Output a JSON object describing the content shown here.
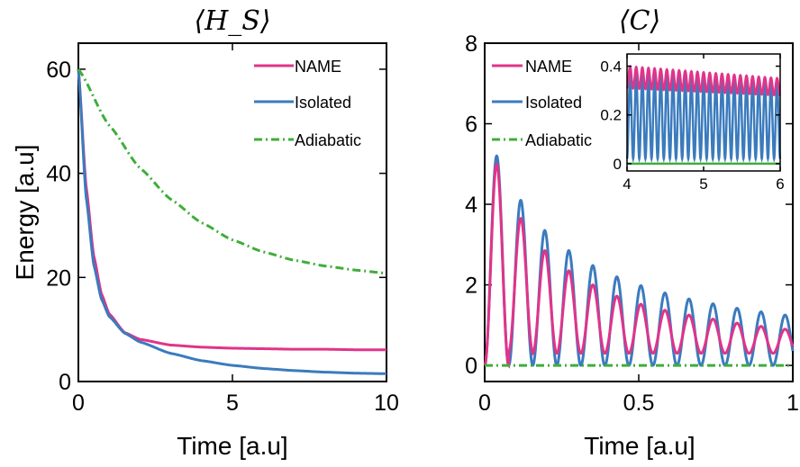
{
  "colors": {
    "name": "#e0348a",
    "isolated": "#3b7bbd",
    "adiabatic": "#3fae3a",
    "axis": "#000000",
    "background": "#ffffff"
  },
  "chart_data": [
    {
      "type": "line",
      "title": "⟨H_S⟩",
      "xlabel": "Time [a.u]",
      "ylabel": "Energy [a.u]",
      "xlim": [
        0,
        10
      ],
      "ylim": [
        0,
        65
      ],
      "xticks": [
        "0",
        "5",
        "10"
      ],
      "yticks": [
        "0",
        "20",
        "40",
        "60"
      ],
      "legend": "top-right",
      "series": [
        {
          "name": "NAME",
          "color": "#e0348a",
          "style": "solid",
          "x": [
            0,
            0.25,
            0.5,
            0.75,
            1,
            1.5,
            2,
            3,
            4,
            5,
            6,
            7,
            8,
            9,
            10
          ],
          "y": [
            60,
            37.5,
            24.1,
            16.8,
            13.0,
            9.4,
            8.1,
            7.0,
            6.6,
            6.4,
            6.3,
            6.2,
            6.2,
            6.1,
            6.1
          ]
        },
        {
          "name": "Isolated",
          "color": "#3b7bbd",
          "style": "solid",
          "x": [
            0,
            0.25,
            0.5,
            0.75,
            1,
            1.5,
            2,
            3,
            4,
            5,
            6,
            7,
            8,
            9,
            10
          ],
          "y": [
            60,
            35.5,
            22.4,
            15.8,
            12.5,
            9.3,
            7.6,
            5.4,
            4.0,
            3.1,
            2.5,
            2.1,
            1.8,
            1.6,
            1.5
          ]
        },
        {
          "name": "Adiabatic",
          "color": "#3fae3a",
          "style": "dashdot",
          "x": [
            0,
            1,
            2,
            3,
            4,
            5,
            6,
            7,
            8,
            9,
            10
          ],
          "y": [
            60,
            49.2,
            41.0,
            35.0,
            30.5,
            27.2,
            24.9,
            23.3,
            22.2,
            21.4,
            20.8
          ]
        }
      ]
    },
    {
      "type": "line",
      "title": "⟨C⟩",
      "xlabel": "Time [a.u]",
      "ylabel": "",
      "xlim": [
        0,
        1
      ],
      "ylim": [
        -0.4,
        8
      ],
      "xticks": [
        "0",
        "0.5",
        "1"
      ],
      "yticks": [
        "0",
        "2",
        "4",
        "6",
        "8"
      ],
      "legend": "top-left",
      "period": 0.078,
      "series": [
        {
          "name": "NAME",
          "color": "#e0348a",
          "style": "solid",
          "peak_t": [
            0.039,
            0.117,
            0.195,
            0.273,
            0.351,
            0.429,
            0.507,
            0.585,
            0.663,
            0.741,
            0.819,
            0.897,
            0.975
          ],
          "peak_y": [
            5.0,
            3.65,
            2.85,
            2.35,
            2.0,
            1.72,
            1.52,
            1.37,
            1.25,
            1.15,
            1.05,
            0.97,
            0.9
          ],
          "trough_y": [
            0,
            0.35,
            0.3,
            0.3,
            0.3,
            0.3,
            0.3,
            0.3,
            0.3,
            0.3,
            0.3,
            0.3,
            0.3
          ]
        },
        {
          "name": "Isolated",
          "color": "#3b7bbd",
          "style": "solid",
          "peak_t": [
            0.039,
            0.117,
            0.195,
            0.273,
            0.351,
            0.429,
            0.507,
            0.585,
            0.663,
            0.741,
            0.819,
            0.897,
            0.975
          ],
          "peak_y": [
            5.2,
            4.1,
            3.35,
            2.85,
            2.48,
            2.2,
            1.98,
            1.8,
            1.65,
            1.53,
            1.42,
            1.33,
            1.25
          ],
          "trough_y": [
            0,
            0,
            0,
            0,
            0,
            0,
            0,
            0,
            0,
            0,
            0,
            0,
            0
          ]
        },
        {
          "name": "Adiabatic",
          "color": "#3fae3a",
          "style": "dashdot",
          "x": [
            0,
            1
          ],
          "y": [
            0,
            0
          ]
        }
      ],
      "inset": {
        "xlim": [
          4,
          6
        ],
        "ylim": [
          -0.03,
          0.45
        ],
        "xticks": [
          "4",
          "5",
          "6"
        ],
        "yticks": [
          "0",
          "0.2",
          "0.4"
        ],
        "series": [
          {
            "name": "NAME",
            "color": "#e0348a",
            "oscillations": 25,
            "max_start": 0.4,
            "max_end": 0.35,
            "min_start": 0.31,
            "min_end": 0.28
          },
          {
            "name": "Isolated",
            "color": "#3b7bbd",
            "oscillations": 25,
            "max_start": 0.36,
            "max_end": 0.33,
            "min_start": 0.02,
            "min_end": 0.02
          },
          {
            "name": "Adiabatic",
            "color": "#3fae3a",
            "value": 0.0
          }
        ]
      }
    }
  ]
}
